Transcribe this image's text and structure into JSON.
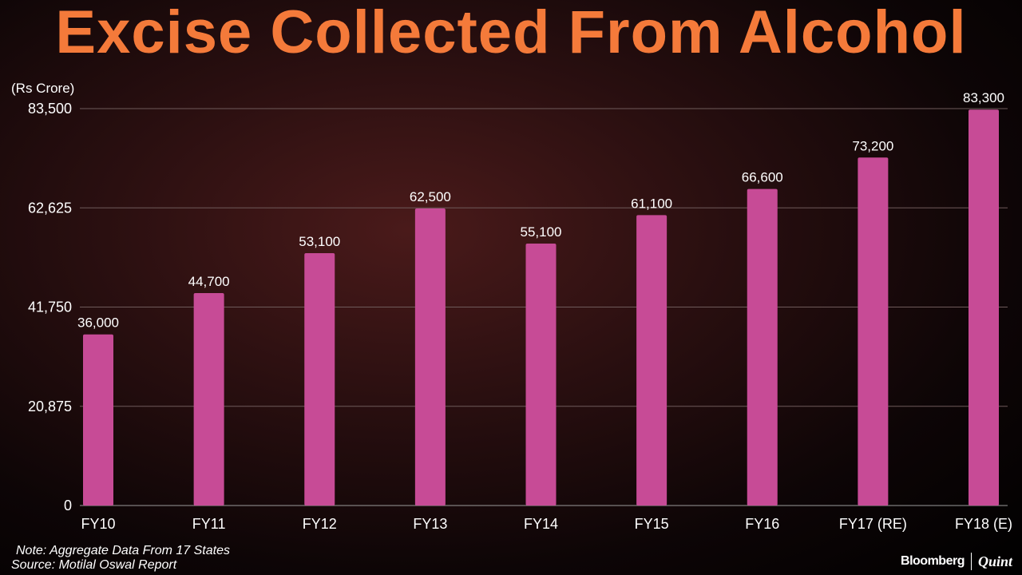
{
  "chart_data": {
    "type": "bar",
    "title": "Excise Collected From Alcohol",
    "unit_label": "(Rs Crore)",
    "categories": [
      "FY10",
      "FY11",
      "FY12",
      "FY13",
      "FY14",
      "FY15",
      "FY16",
      "FY17 (RE)",
      "FY18 (E)"
    ],
    "values": [
      36000,
      44700,
      53100,
      62500,
      55100,
      61100,
      66600,
      73200,
      83300
    ],
    "value_labels": [
      "36,000",
      "44,700",
      "53,100",
      "62,500",
      "55,100",
      "61,100",
      "66,600",
      "73,200",
      "83,300"
    ],
    "yticks": [
      0,
      20875,
      41750,
      62625,
      83500
    ],
    "ytick_labels": [
      "0",
      "20,875",
      "41,750",
      "62,625",
      "83,500"
    ],
    "ylim": [
      0,
      83500
    ],
    "grid": true,
    "bar_color": "#c74b96",
    "title_color": "#f47a3a"
  },
  "footer": {
    "note": "Note: Aggregate Data From 17 States",
    "source": "Source: Motilal Oswal Report",
    "brand_left": "Bloomberg",
    "brand_right": "Quint"
  }
}
